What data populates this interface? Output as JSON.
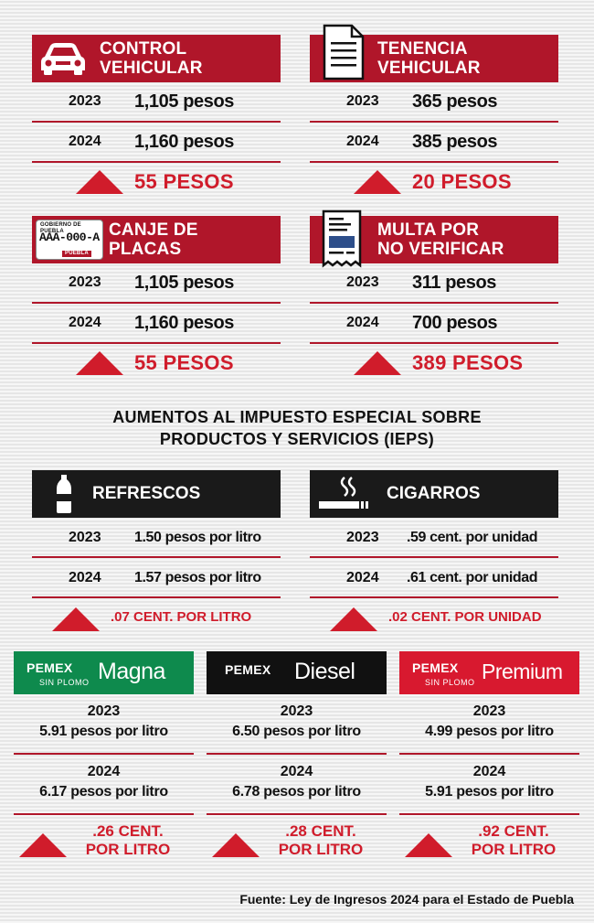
{
  "vehicle_cards": [
    {
      "id": "control",
      "title_line1": "CONTROL",
      "title_line2": "VEHICULAR",
      "icon": "car-icon",
      "rows": [
        {
          "year": "2023",
          "value": "1,105 pesos"
        },
        {
          "year": "2024",
          "value": "1,160 pesos"
        }
      ],
      "increase": "55 PESOS"
    },
    {
      "id": "tenencia",
      "title_line1": "TENENCIA",
      "title_line2": "VEHICULAR",
      "icon": "document-icon",
      "rows": [
        {
          "year": "2023",
          "value": "365 pesos"
        },
        {
          "year": "2024",
          "value": "385 pesos"
        }
      ],
      "increase": "20 PESOS"
    },
    {
      "id": "canje",
      "title_line1": "CANJE DE",
      "title_line2": "PLACAS",
      "icon": "license-plate-icon",
      "plate_top": "Gobierno de Puebla",
      "plate_number": "AAA-000-A",
      "plate_bottom": "PUEBLA",
      "rows": [
        {
          "year": "2023",
          "value": "1,105 pesos"
        },
        {
          "year": "2024",
          "value": "1,160 pesos"
        }
      ],
      "increase": "55 PESOS"
    },
    {
      "id": "multa",
      "title_line1": "MULTA POR",
      "title_line2": "NO VERIFICAR",
      "icon": "receipt-icon",
      "rows": [
        {
          "year": "2023",
          "value": "311 pesos"
        },
        {
          "year": "2024",
          "value": "700 pesos"
        }
      ],
      "increase": "389 PESOS"
    }
  ],
  "ieps": {
    "title_line1": "AUMENTOS AL IMPUESTO ESPECIAL SOBRE",
    "title_line2": "PRODUCTOS Y SERVICIOS (IEPS)",
    "cards": [
      {
        "id": "refrescos",
        "title": "REFRESCOS",
        "icon": "soda-bottle-icon",
        "rows": [
          {
            "year": "2023",
            "value": "1.50 pesos por litro"
          },
          {
            "year": "2024",
            "value": "1.57 pesos por litro"
          }
        ],
        "increase": ".07 CENT. POR LITRO"
      },
      {
        "id": "cigarros",
        "title": "CIGARROS",
        "icon": "cigarette-icon",
        "rows": [
          {
            "year": "2023",
            "value": ".59 cent. por unidad"
          },
          {
            "year": "2024",
            "value": ".61 cent. por unidad"
          }
        ],
        "increase": ".02 CENT. POR UNIDAD"
      }
    ]
  },
  "fuels": [
    {
      "id": "magna",
      "brand": "PEMEX",
      "product": "Magna",
      "subtitle": "SIN PLOMO",
      "header_color": "#0e8a4d",
      "year1": "2023",
      "value1": "5.91 pesos por litro",
      "year2": "2024",
      "value2": "6.17 pesos por litro",
      "increase_line1": ".26 CENT.",
      "increase_line2": "POR LITRO"
    },
    {
      "id": "diesel",
      "brand": "PEMEX",
      "product": "Diesel",
      "subtitle": "",
      "header_color": "#111111",
      "year1": "2023",
      "value1": "6.50 pesos por litro",
      "year2": "2024",
      "value2": "6.78 pesos por litro",
      "increase_line1": ".28 CENT.",
      "increase_line2": "POR LITRO"
    },
    {
      "id": "premium",
      "brand": "PEMEX",
      "product": "Premium",
      "subtitle": "SIN PLOMO",
      "header_color": "#d8192f",
      "year1": "2023",
      "value1": "4.99 pesos por litro",
      "year2": "2024",
      "value2": "5.91 pesos por litro",
      "increase_line1": ".92 CENT.",
      "increase_line2": "POR LITRO"
    }
  ],
  "source": "Fuente: Ley de Ingresos 2024 para el Estado de Puebla",
  "colors": {
    "header_red": "#b0162a",
    "accent_red": "#d01c2b",
    "dark": "#1a1a1a"
  }
}
